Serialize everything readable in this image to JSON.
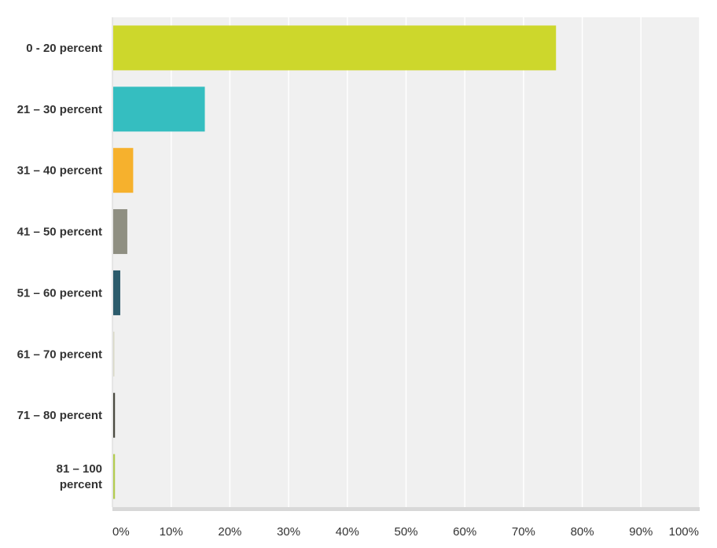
{
  "chart_data": {
    "type": "bar",
    "orientation": "horizontal",
    "categories": [
      [
        "0 - 20 percent"
      ],
      [
        "21 – 30 percent"
      ],
      [
        "31 – 40 percent"
      ],
      [
        "41 – 50 percent"
      ],
      [
        "51 – 60 percent"
      ],
      [
        "61 – 70 percent"
      ],
      [
        "71 – 80 percent"
      ],
      [
        "81 – 100",
        "percent"
      ]
    ],
    "values": [
      75.4,
      15.6,
      3.4,
      2.4,
      1.2,
      0.2,
      0.3,
      0.3
    ],
    "colors": [
      "#cdd72c",
      "#35bec0",
      "#f6b12d",
      "#8f8f82",
      "#2c5c6c",
      "#d9d9c6",
      "#4a4a40",
      "#b3cc50"
    ],
    "x_ticks": [
      "0%",
      "10%",
      "20%",
      "30%",
      "40%",
      "50%",
      "60%",
      "70%",
      "80%",
      "90%",
      "100%"
    ],
    "xlim": [
      0,
      100
    ],
    "grid": true,
    "title": "",
    "xlabel": "",
    "ylabel": ""
  }
}
